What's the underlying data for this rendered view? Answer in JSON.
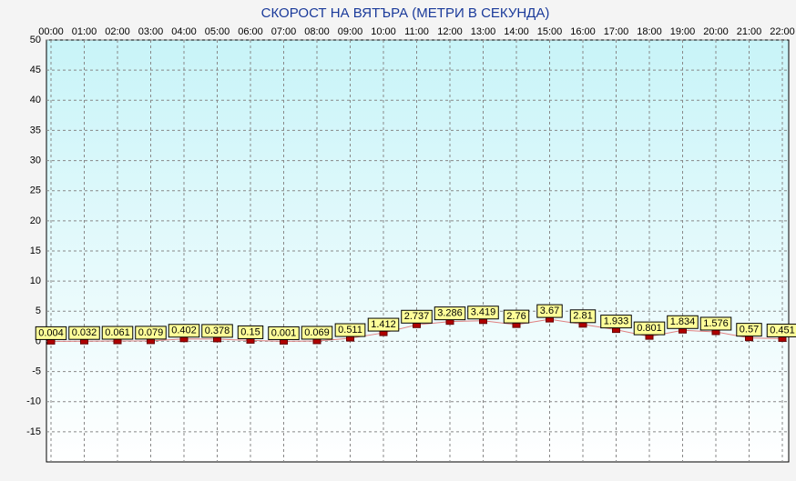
{
  "chart_data": {
    "type": "line",
    "title": "СКОРОСТ НА ВЯТЪРА (МЕТРИ В СЕКУНДА)",
    "categories": [
      "00:00",
      "01:00",
      "02:00",
      "03:00",
      "04:00",
      "05:00",
      "06:00",
      "07:00",
      "08:00",
      "09:00",
      "10:00",
      "11:00",
      "12:00",
      "13:00",
      "14:00",
      "15:00",
      "16:00",
      "17:00",
      "18:00",
      "19:00",
      "20:00",
      "21:00",
      "22:00"
    ],
    "values": [
      0.004,
      0.032,
      0.061,
      0.079,
      0.402,
      0.378,
      0.15,
      0.001,
      0.069,
      0.511,
      1.412,
      2.737,
      3.286,
      3.419,
      2.76,
      3.67,
      2.81,
      1.933,
      0.801,
      1.834,
      1.576,
      0.57,
      0.451
    ],
    "color": "#b00000",
    "ylim": [
      -20,
      50
    ],
    "yticks": [
      50,
      45,
      40,
      35,
      30,
      25,
      20,
      15,
      10,
      5,
      0,
      -5,
      -10,
      -15
    ],
    "grid": true
  }
}
